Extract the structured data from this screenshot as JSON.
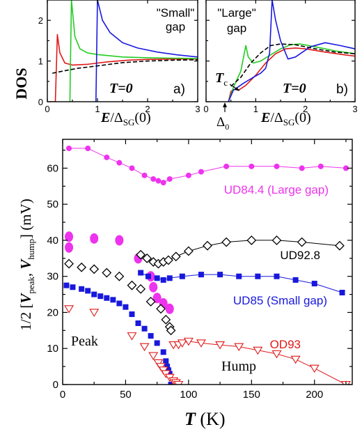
{
  "chart_data": [
    {
      "type": "line",
      "panel_label": "a)",
      "ylabel": "DOS",
      "xlim": [
        0,
        3
      ],
      "ylim": [
        0,
        2.5
      ],
      "xticks": [
        "0",
        "1",
        "2",
        "3"
      ],
      "yticks": [
        "0",
        "1",
        "2"
      ],
      "annotations": {
        "gap": "\"Small\"\ngap",
        "temp": "T=0"
      },
      "colors": {
        "red": "#e01818",
        "green": "#22cc22",
        "blue": "#1818e0",
        "dashed": "#000000"
      },
      "series": [
        {
          "color": "red",
          "values": [
            [
              0.05,
              0
            ],
            [
              0.16,
              0
            ],
            [
              0.2,
              1.65
            ],
            [
              0.25,
              1.2
            ],
            [
              0.35,
              0.95
            ],
            [
              0.5,
              0.9
            ],
            [
              0.8,
              0.92
            ],
            [
              1.2,
              0.98
            ],
            [
              1.6,
              1.02
            ],
            [
              2.0,
              1.04
            ],
            [
              2.5,
              1.05
            ],
            [
              3.0,
              1.05
            ]
          ]
        },
        {
          "color": "green",
          "values": [
            [
              0.45,
              0
            ],
            [
              0.48,
              2.5
            ],
            [
              0.55,
              1.6
            ],
            [
              0.65,
              1.3
            ],
            [
              0.8,
              1.2
            ],
            [
              1.0,
              1.16
            ],
            [
              1.5,
              1.1
            ],
            [
              2.0,
              1.08
            ],
            [
              2.5,
              1.07
            ],
            [
              3.0,
              1.06
            ]
          ]
        },
        {
          "color": "blue",
          "values": [
            [
              0.97,
              0
            ],
            [
              1.0,
              2.5
            ],
            [
              1.1,
              2.0
            ],
            [
              1.25,
              1.7
            ],
            [
              1.5,
              1.45
            ],
            [
              1.8,
              1.32
            ],
            [
              2.2,
              1.22
            ],
            [
              2.6,
              1.15
            ],
            [
              3.0,
              1.1
            ]
          ]
        },
        {
          "color": "dashed",
          "dashed": true,
          "values": [
            [
              0.1,
              0.7
            ],
            [
              0.3,
              0.75
            ],
            [
              0.6,
              0.82
            ],
            [
              1.0,
              0.88
            ],
            [
              1.5,
              0.96
            ],
            [
              2.0,
              1.0
            ],
            [
              2.5,
              1.02
            ],
            [
              3.0,
              1.03
            ]
          ]
        }
      ]
    },
    {
      "type": "line",
      "panel_label": "b)",
      "xlim": [
        0,
        3
      ],
      "ylim": [
        0,
        2.5
      ],
      "xticks": [
        "0",
        "1",
        "2",
        "3"
      ],
      "yticks": [
        "0",
        "1",
        "2"
      ],
      "annotations": {
        "gap": "\"Large\"\ngap",
        "temp": "T=0",
        "tc": "T",
        "tc_sub": "c",
        "delta": "Δ",
        "delta_sub": "0"
      },
      "colors": {
        "red": "#e01818",
        "green": "#22cc22",
        "blue": "#1818e0",
        "dashed": "#000000"
      },
      "series": [
        {
          "color": "red",
          "values": [
            [
              0.45,
              0
            ],
            [
              0.5,
              0.25
            ],
            [
              0.55,
              0.3
            ],
            [
              0.6,
              0.3
            ],
            [
              0.65,
              0.28
            ],
            [
              0.8,
              0.4
            ],
            [
              1.0,
              0.65
            ],
            [
              1.2,
              0.95
            ],
            [
              1.4,
              1.18
            ],
            [
              1.6,
              1.3
            ],
            [
              1.8,
              1.32
            ],
            [
              2.0,
              1.3
            ],
            [
              2.4,
              1.22
            ],
            [
              2.8,
              1.15
            ],
            [
              3.0,
              1.12
            ]
          ]
        },
        {
          "color": "green",
          "values": [
            [
              0.45,
              0
            ],
            [
              0.55,
              0.35
            ],
            [
              0.7,
              0.75
            ],
            [
              0.8,
              1.38
            ],
            [
              0.85,
              1.1
            ],
            [
              0.95,
              0.95
            ],
            [
              1.1,
              1.0
            ],
            [
              1.3,
              1.15
            ],
            [
              1.5,
              1.3
            ],
            [
              1.7,
              1.4
            ],
            [
              1.9,
              1.42
            ],
            [
              2.2,
              1.35
            ],
            [
              2.6,
              1.25
            ],
            [
              3.0,
              1.18
            ]
          ]
        },
        {
          "color": "blue",
          "values": [
            [
              0.45,
              0
            ],
            [
              0.55,
              0.28
            ],
            [
              0.75,
              0.45
            ],
            [
              0.95,
              0.6
            ],
            [
              1.1,
              0.7
            ],
            [
              1.2,
              0.82
            ],
            [
              1.28,
              1.2
            ],
            [
              1.33,
              2.5
            ],
            [
              1.4,
              2.0
            ],
            [
              1.5,
              1.5
            ],
            [
              1.65,
              1.05
            ],
            [
              1.8,
              1.1
            ],
            [
              2.1,
              1.35
            ],
            [
              2.4,
              1.45
            ],
            [
              2.7,
              1.38
            ],
            [
              3.0,
              1.3
            ]
          ]
        },
        {
          "color": "dashed",
          "dashed": true,
          "values": [
            [
              0.5,
              0.38
            ],
            [
              0.7,
              0.6
            ],
            [
              0.9,
              0.95
            ],
            [
              1.1,
              1.2
            ],
            [
              1.3,
              1.38
            ],
            [
              1.5,
              1.42
            ],
            [
              1.8,
              1.4
            ],
            [
              2.2,
              1.3
            ],
            [
              2.6,
              1.22
            ],
            [
              3.0,
              1.18
            ]
          ]
        }
      ]
    },
    {
      "type": "scatter",
      "xlim": [
        0,
        230
      ],
      "ylim": [
        0,
        68
      ],
      "xticks": [
        0,
        50,
        100,
        150,
        200
      ],
      "yticks": [
        0,
        10,
        20,
        30,
        40,
        50,
        60
      ],
      "xlabel_main": "T",
      "xlabel_unit": " (K)",
      "ylabel_parts": {
        "prefix": "1/2 [",
        "v1": "V",
        "s1": "peak",
        "mid": ", ",
        "v2": "V",
        "s2": "hump",
        "suffix": "]  (mV)"
      },
      "series": [
        {
          "name": "UD84.4 (Large gap)",
          "color": "#ee33ee",
          "marker": "filled-circle",
          "line": true,
          "values": [
            [
              5,
              65.5
            ],
            [
              20,
              65.5
            ],
            [
              35,
              63
            ],
            [
              45,
              61.5
            ],
            [
              55,
              60
            ],
            [
              65,
              58
            ],
            [
              72,
              57
            ],
            [
              76,
              56.5
            ],
            [
              80,
              56
            ],
            [
              85,
              57
            ],
            [
              100,
              58
            ],
            [
              110,
              59
            ],
            [
              130,
              60.5
            ],
            [
              150,
              60.5
            ],
            [
              170,
              60.5
            ],
            [
              190,
              60
            ],
            [
              205,
              60.5
            ],
            [
              225,
              60
            ]
          ]
        },
        {
          "name": "",
          "color": "#ee33ee",
          "marker": "filled-oval",
          "line": false,
          "values": [
            [
              5,
              41
            ],
            [
              5,
              38
            ],
            [
              25,
              40.5
            ],
            [
              45,
              40
            ],
            [
              60,
              35
            ],
            [
              70,
              30
            ],
            [
              72,
              27
            ],
            [
              75,
              24
            ],
            [
              80,
              22.5
            ],
            [
              85,
              21
            ]
          ]
        },
        {
          "name": "UD92.8",
          "color": "#000000",
          "marker": "open-diamond",
          "line": true,
          "values": [
            [
              62,
              36
            ],
            [
              67,
              35
            ],
            [
              72,
              34
            ],
            [
              76,
              33.5
            ],
            [
              80,
              34
            ],
            [
              84,
              34.5
            ],
            [
              90,
              35.5
            ],
            [
              100,
              37
            ],
            [
              115,
              38.5
            ],
            [
              130,
              39.5
            ],
            [
              150,
              40
            ],
            [
              170,
              40
            ],
            [
              190,
              39.5
            ],
            [
              220,
              38.5
            ]
          ]
        },
        {
          "name": "",
          "color": "#000000",
          "marker": "open-diamond",
          "line": false,
          "values": [
            [
              5,
              33.5
            ],
            [
              15,
              32.5
            ],
            [
              25,
              32
            ],
            [
              35,
              31
            ],
            [
              45,
              30
            ],
            [
              55,
              27.5
            ],
            [
              62,
              26.5
            ],
            [
              70,
              23
            ],
            [
              78,
              21
            ],
            [
              82,
              18
            ],
            [
              85,
              16
            ],
            [
              86,
              15
            ]
          ]
        },
        {
          "name": "UD85 (Small gap)",
          "color": "#1818dd",
          "marker": "filled-square",
          "line": true,
          "values": [
            [
              62,
              31
            ],
            [
              68,
              30
            ],
            [
              75,
              29.5
            ],
            [
              80,
              29
            ],
            [
              85,
              29.5
            ],
            [
              95,
              30
            ],
            [
              110,
              30.5
            ],
            [
              125,
              30.5
            ],
            [
              140,
              30
            ],
            [
              155,
              30
            ],
            [
              170,
              30
            ],
            [
              185,
              29
            ],
            [
              200,
              28
            ],
            [
              222,
              25.5
            ]
          ]
        },
        {
          "name": "",
          "color": "#1818dd",
          "marker": "filled-square",
          "line": false,
          "values": [
            [
              3,
              27.5
            ],
            [
              8,
              27
            ],
            [
              15,
              26.5
            ],
            [
              20,
              26
            ],
            [
              25,
              25
            ],
            [
              30,
              24.5
            ],
            [
              35,
              24
            ],
            [
              40,
              23.5
            ],
            [
              45,
              22.5
            ],
            [
              50,
              21.5
            ],
            [
              55,
              19.5
            ],
            [
              60,
              17
            ],
            [
              65,
              15.5
            ],
            [
              70,
              13.5
            ],
            [
              75,
              11.5
            ],
            [
              80,
              9
            ],
            [
              82,
              6.5
            ],
            [
              83,
              5
            ],
            [
              84,
              4
            ],
            [
              85,
              3
            ],
            [
              86,
              0
            ],
            [
              88,
              0
            ]
          ]
        },
        {
          "name": "OD93",
          "color": "#e01818",
          "marker": "open-triangle",
          "line": true,
          "values": [
            [
              88,
              11
            ],
            [
              92,
              11
            ],
            [
              95,
              11.5
            ],
            [
              100,
              12
            ],
            [
              110,
              11.5
            ],
            [
              125,
              11
            ],
            [
              140,
              10.5
            ],
            [
              155,
              9.5
            ],
            [
              170,
              8.5
            ],
            [
              185,
              7
            ],
            [
              200,
              4.5
            ],
            [
              225,
              0
            ]
          ]
        },
        {
          "name": "",
          "color": "#e01818",
          "marker": "open-triangle",
          "line": false,
          "values": [
            [
              5,
              21
            ],
            [
              25,
              20
            ],
            [
              55,
              13.5
            ],
            [
              65,
              10.5
            ],
            [
              72,
              8
            ],
            [
              76,
              6
            ],
            [
              78,
              5
            ],
            [
              80,
              4
            ],
            [
              82,
              3
            ],
            [
              85,
              2
            ],
            [
              88,
              1
            ],
            [
              90,
              0.5
            ],
            [
              92,
              0
            ]
          ]
        }
      ],
      "annotations": {
        "peak": "Peak",
        "hump": "Hump"
      }
    }
  ]
}
